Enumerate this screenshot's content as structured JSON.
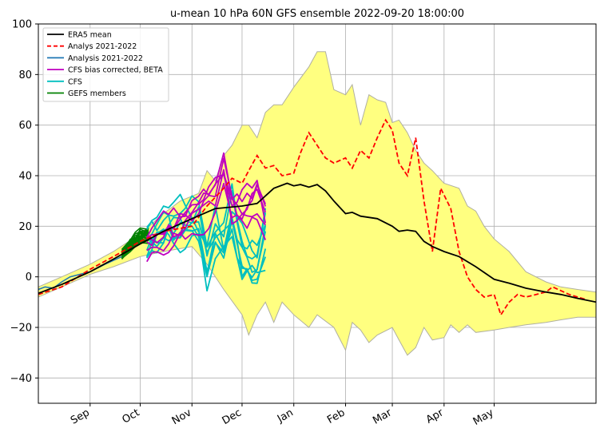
{
  "chart_data": {
    "type": "line",
    "title": "u-mean 10 hPa 60N GFS ensemble 2022-09-20 18:00:00",
    "xlabel": "",
    "ylabel": "",
    "xlim": [
      "2022-08-01",
      "2023-07-01"
    ],
    "ylim": [
      -50,
      100
    ],
    "x_ticks": [
      {
        "date": "2022-09-01",
        "label": "Sep"
      },
      {
        "date": "2022-10-01",
        "label": "Oct"
      },
      {
        "date": "2022-11-01",
        "label": "Nov"
      },
      {
        "date": "2022-12-01",
        "label": "Dec"
      },
      {
        "date": "2023-01-01",
        "label": "Jan"
      },
      {
        "date": "2023-02-01",
        "label": "Feb"
      },
      {
        "date": "2023-03-01",
        "label": "Mar"
      },
      {
        "date": "2023-04-01",
        "label": "Apr"
      },
      {
        "date": "2023-05-01",
        "label": "May"
      }
    ],
    "y_ticks": [
      -40,
      -20,
      0,
      20,
      40,
      60,
      80,
      100
    ],
    "grid": true,
    "legend_position": "top-left",
    "legend": [
      {
        "label": "ERA5 mean",
        "color": "#000000",
        "style": "solid"
      },
      {
        "label": "Analys 2021-2022",
        "color": "#ff0000",
        "style": "dashed"
      },
      {
        "label": "Analysis 2021-2022",
        "color": "#1f77b4",
        "style": "solid"
      },
      {
        "label": "CFS bias corrected, BETA",
        "color": "#bf00bf",
        "style": "solid"
      },
      {
        "label": "CFS",
        "color": "#00bfbf",
        "style": "solid"
      },
      {
        "label": "GEFS members",
        "color": "#008000",
        "style": "solid"
      }
    ],
    "envelope": {
      "fill_color": "#ffff80",
      "edge_color": "#b0b0a0",
      "upper": [
        [
          "2022-08-01",
          -4
        ],
        [
          "2022-08-15",
          0
        ],
        [
          "2022-09-01",
          5
        ],
        [
          "2022-09-15",
          10
        ],
        [
          "2022-10-01",
          17
        ],
        [
          "2022-10-15",
          25
        ],
        [
          "2022-10-25",
          30
        ],
        [
          "2022-11-05",
          33
        ],
        [
          "2022-11-10",
          42
        ],
        [
          "2022-11-15",
          38
        ],
        [
          "2022-11-20",
          48
        ],
        [
          "2022-11-25",
          52
        ],
        [
          "2022-12-01",
          60
        ],
        [
          "2022-12-05",
          60
        ],
        [
          "2022-12-10",
          55
        ],
        [
          "2022-12-15",
          65
        ],
        [
          "2022-12-20",
          68
        ],
        [
          "2022-12-25",
          68
        ],
        [
          "2023-01-01",
          75
        ],
        [
          "2023-01-10",
          83
        ],
        [
          "2023-01-15",
          89
        ],
        [
          "2023-01-20",
          89
        ],
        [
          "2023-01-25",
          74
        ],
        [
          "2023-02-01",
          72
        ],
        [
          "2023-02-05",
          76
        ],
        [
          "2023-02-10",
          60
        ],
        [
          "2023-02-15",
          72
        ],
        [
          "2023-02-20",
          70
        ],
        [
          "2023-02-25",
          69
        ],
        [
          "2023-03-01",
          61
        ],
        [
          "2023-03-05",
          62
        ],
        [
          "2023-03-10",
          57
        ],
        [
          "2023-03-15",
          50
        ],
        [
          "2023-03-20",
          45
        ],
        [
          "2023-03-25",
          42
        ],
        [
          "2023-04-01",
          37
        ],
        [
          "2023-04-10",
          35
        ],
        [
          "2023-04-15",
          28
        ],
        [
          "2023-04-20",
          26
        ],
        [
          "2023-04-25",
          20
        ],
        [
          "2023-05-01",
          15
        ],
        [
          "2023-05-10",
          10
        ],
        [
          "2023-05-20",
          2
        ],
        [
          "2023-06-01",
          -2
        ],
        [
          "2023-06-10",
          -4
        ],
        [
          "2023-06-20",
          -5
        ],
        [
          "2023-07-01",
          -6
        ]
      ],
      "lower": [
        [
          "2022-08-01",
          -8
        ],
        [
          "2022-08-15",
          -4
        ],
        [
          "2022-09-01",
          1
        ],
        [
          "2022-09-15",
          4
        ],
        [
          "2022-10-01",
          8
        ],
        [
          "2022-10-15",
          10
        ],
        [
          "2022-11-01",
          12
        ],
        [
          "2022-11-10",
          5
        ],
        [
          "2022-11-20",
          -5
        ],
        [
          "2022-12-01",
          -15
        ],
        [
          "2022-12-05",
          -23
        ],
        [
          "2022-12-10",
          -15
        ],
        [
          "2022-12-15",
          -10
        ],
        [
          "2022-12-20",
          -18
        ],
        [
          "2022-12-25",
          -10
        ],
        [
          "2023-01-01",
          -15
        ],
        [
          "2023-01-10",
          -20
        ],
        [
          "2023-01-15",
          -15
        ],
        [
          "2023-01-25",
          -20
        ],
        [
          "2023-02-01",
          -29
        ],
        [
          "2023-02-05",
          -18
        ],
        [
          "2023-02-10",
          -21
        ],
        [
          "2023-02-15",
          -26
        ],
        [
          "2023-02-20",
          -23
        ],
        [
          "2023-03-01",
          -20
        ],
        [
          "2023-03-05",
          -25
        ],
        [
          "2023-03-10",
          -31
        ],
        [
          "2023-03-15",
          -28
        ],
        [
          "2023-03-20",
          -20
        ],
        [
          "2023-03-25",
          -25
        ],
        [
          "2023-04-01",
          -24
        ],
        [
          "2023-04-05",
          -19
        ],
        [
          "2023-04-10",
          -22
        ],
        [
          "2023-04-15",
          -19
        ],
        [
          "2023-04-20",
          -22
        ],
        [
          "2023-05-01",
          -21
        ],
        [
          "2023-05-10",
          -20
        ],
        [
          "2023-05-20",
          -19
        ],
        [
          "2023-06-01",
          -18
        ],
        [
          "2023-06-10",
          -17
        ],
        [
          "2023-06-20",
          -16
        ],
        [
          "2023-07-01",
          -16
        ]
      ]
    },
    "series": [
      {
        "name": "ERA5 mean",
        "color": "#000000",
        "style": "solid",
        "points": [
          [
            "2022-08-01",
            -6.5
          ],
          [
            "2022-08-15",
            -3
          ],
          [
            "2022-09-01",
            2
          ],
          [
            "2022-09-15",
            7
          ],
          [
            "2022-10-01",
            13
          ],
          [
            "2022-10-15",
            18
          ],
          [
            "2022-11-01",
            23
          ],
          [
            "2022-11-15",
            27
          ],
          [
            "2022-12-01",
            28
          ],
          [
            "2022-12-10",
            29
          ],
          [
            "2022-12-20",
            35
          ],
          [
            "2022-12-28",
            37
          ],
          [
            "2023-01-01",
            36
          ],
          [
            "2023-01-05",
            36.5
          ],
          [
            "2023-01-10",
            35.5
          ],
          [
            "2023-01-15",
            36.5
          ],
          [
            "2023-01-20",
            34
          ],
          [
            "2023-01-25",
            30
          ],
          [
            "2023-02-01",
            25
          ],
          [
            "2023-02-05",
            25.5
          ],
          [
            "2023-02-10",
            24
          ],
          [
            "2023-02-20",
            23
          ],
          [
            "2023-03-01",
            20
          ],
          [
            "2023-03-05",
            18
          ],
          [
            "2023-03-10",
            18.5
          ],
          [
            "2023-03-15",
            18
          ],
          [
            "2023-03-20",
            14
          ],
          [
            "2023-03-25",
            12
          ],
          [
            "2023-04-01",
            10
          ],
          [
            "2023-04-10",
            8
          ],
          [
            "2023-04-20",
            4
          ],
          [
            "2023-05-01",
            -1
          ],
          [
            "2023-05-10",
            -2.5
          ],
          [
            "2023-05-20",
            -4.5
          ],
          [
            "2023-06-01",
            -6
          ],
          [
            "2023-06-10",
            -7
          ],
          [
            "2023-06-20",
            -8.5
          ],
          [
            "2023-07-01",
            -10
          ]
        ]
      },
      {
        "name": "Analys 2021-2022",
        "color": "#ff0000",
        "style": "dashed",
        "points": [
          [
            "2022-08-01",
            -7
          ],
          [
            "2022-08-15",
            -4
          ],
          [
            "2022-09-01",
            3
          ],
          [
            "2022-09-15",
            8
          ],
          [
            "2022-10-01",
            14
          ],
          [
            "2022-10-15",
            18
          ],
          [
            "2022-11-01",
            20
          ],
          [
            "2022-11-10",
            28
          ],
          [
            "2022-11-20",
            35
          ],
          [
            "2022-11-25",
            39
          ],
          [
            "2022-12-01",
            37
          ],
          [
            "2022-12-05",
            42
          ],
          [
            "2022-12-10",
            48
          ],
          [
            "2022-12-15",
            43
          ],
          [
            "2022-12-20",
            44
          ],
          [
            "2022-12-25",
            40
          ],
          [
            "2023-01-01",
            41
          ],
          [
            "2023-01-05",
            49
          ],
          [
            "2023-01-10",
            57
          ],
          [
            "2023-01-15",
            52
          ],
          [
            "2023-01-20",
            47
          ],
          [
            "2023-01-25",
            45
          ],
          [
            "2023-02-01",
            47
          ],
          [
            "2023-02-05",
            43
          ],
          [
            "2023-02-10",
            50
          ],
          [
            "2023-02-15",
            47
          ],
          [
            "2023-02-20",
            55
          ],
          [
            "2023-02-25",
            62
          ],
          [
            "2023-03-01",
            58
          ],
          [
            "2023-03-05",
            45
          ],
          [
            "2023-03-10",
            40
          ],
          [
            "2023-03-15",
            55
          ],
          [
            "2023-03-20",
            30
          ],
          [
            "2023-03-25",
            10
          ],
          [
            "2023-03-30",
            35
          ],
          [
            "2023-04-05",
            27
          ],
          [
            "2023-04-10",
            10
          ],
          [
            "2023-04-15",
            0
          ],
          [
            "2023-04-20",
            -5
          ],
          [
            "2023-04-25",
            -8
          ],
          [
            "2023-05-01",
            -7
          ],
          [
            "2023-05-05",
            -15
          ],
          [
            "2023-05-10",
            -10
          ],
          [
            "2023-05-15",
            -7
          ],
          [
            "2023-05-20",
            -8
          ],
          [
            "2023-06-01",
            -6
          ],
          [
            "2023-06-05",
            -4
          ],
          [
            "2023-06-15",
            -7
          ],
          [
            "2023-06-20",
            -8
          ],
          [
            "2023-06-25",
            -9
          ]
        ]
      },
      {
        "name": "Analysis 2021-2022",
        "color": "#1f77b4",
        "style": "solid",
        "points": [
          [
            "2022-08-01",
            -5
          ],
          [
            "2022-08-05",
            -4
          ],
          [
            "2022-08-10",
            -4.5
          ],
          [
            "2022-08-15",
            -2
          ],
          [
            "2022-08-20",
            0
          ],
          [
            "2022-09-01",
            2
          ],
          [
            "2022-09-10",
            5
          ],
          [
            "2022-09-20",
            8
          ]
        ]
      },
      {
        "name": "CFS bias corrected, BETA",
        "color": "#bf00bf",
        "style": "solid",
        "ensemble_members": 6,
        "points": [
          [
            "2022-10-05",
            12
          ],
          [
            "2022-10-15",
            16
          ],
          [
            "2022-10-25",
            18
          ],
          [
            "2022-11-05",
            23
          ],
          [
            "2022-11-15",
            33
          ],
          [
            "2022-11-20",
            42
          ],
          [
            "2022-11-25",
            28
          ],
          [
            "2022-12-01",
            25
          ],
          [
            "2022-12-10",
            30
          ],
          [
            "2022-12-15",
            22
          ]
        ]
      },
      {
        "name": "CFS",
        "color": "#00bfbf",
        "style": "solid",
        "ensemble_members": 8,
        "points": [
          [
            "2022-10-05",
            13
          ],
          [
            "2022-10-15",
            18
          ],
          [
            "2022-10-25",
            20
          ],
          [
            "2022-11-05",
            18
          ],
          [
            "2022-11-10",
            5
          ],
          [
            "2022-11-15",
            18
          ],
          [
            "2022-11-20",
            12
          ],
          [
            "2022-11-25",
            25
          ],
          [
            "2022-12-01",
            10
          ],
          [
            "2022-12-10",
            5
          ],
          [
            "2022-12-15",
            15
          ]
        ]
      },
      {
        "name": "GEFS members",
        "color": "#008000",
        "style": "solid",
        "ensemble_members": 31,
        "points": [
          [
            "2022-09-20",
            9
          ],
          [
            "2022-09-25",
            13
          ],
          [
            "2022-10-01",
            16
          ],
          [
            "2022-10-06",
            17
          ]
        ]
      }
    ]
  }
}
